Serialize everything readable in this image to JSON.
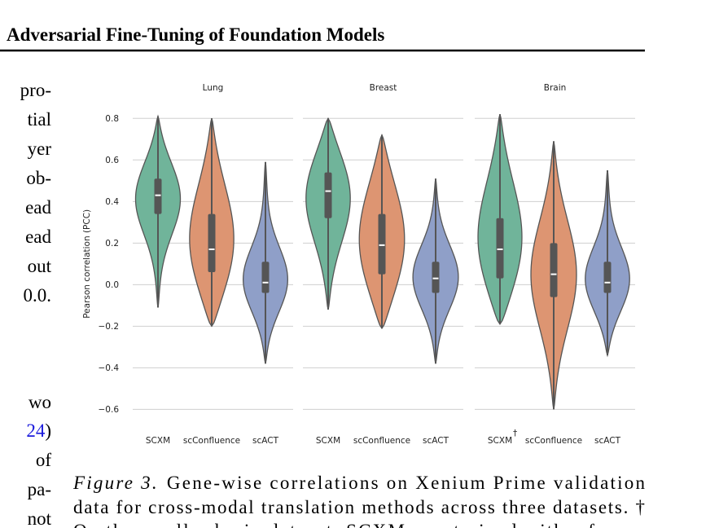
{
  "header": {
    "title": "Adversarial Fine-Tuning of Foundation Models"
  },
  "left_column": {
    "lines": [
      "pro-",
      "tial",
      "yer",
      "ob-",
      "ead",
      "ead",
      "out",
      "0.0.",
      "wo",
      {
        "link": "24",
        "rest": ")"
      },
      "of",
      "pa-",
      "not"
    ]
  },
  "caption": {
    "label": "Figure 3.",
    "lines": [
      "Gene-wise correlations on Xenium Prime validation",
      "data for cross-modal translation methods across three datasets. †",
      "On the smaller brain dataset, SCXM was trained with a frozen"
    ]
  },
  "chart_data": [
    {
      "type": "violin",
      "title": "Lung",
      "ylabel": "Pearson correlation (PCC)",
      "categories": [
        "SCXM",
        "scConfluence",
        "scACT"
      ],
      "colors": [
        "#70b49a",
        "#dd9572",
        "#8f9fc8"
      ],
      "min": [
        -0.11,
        -0.2,
        -0.38
      ],
      "q1": [
        0.34,
        0.06,
        -0.04
      ],
      "median": [
        0.43,
        0.17,
        0.01
      ],
      "q3": [
        0.51,
        0.34,
        0.11
      ],
      "max": [
        0.81,
        0.8,
        0.59
      ],
      "ylim": [
        -0.63,
        0.86
      ],
      "yticks": [
        {
          "value": -0.6,
          "label": "−0.6"
        },
        {
          "value": -0.4,
          "label": "−0.4"
        },
        {
          "value": -0.2,
          "label": "−0.2"
        },
        {
          "value": 0,
          "label": "0.0"
        },
        0.2,
        0.4,
        0.6,
        0.8
      ],
      "grid": true
    },
    {
      "type": "violin",
      "title": "Breast",
      "categories": [
        "SCXM",
        "scConfluence",
        "scACT"
      ],
      "colors": [
        "#70b49a",
        "#dd9572",
        "#8f9fc8"
      ],
      "min": [
        -0.12,
        -0.21,
        -0.38
      ],
      "q1": [
        0.32,
        0.05,
        -0.04
      ],
      "median": [
        0.45,
        0.19,
        0.03
      ],
      "q3": [
        0.54,
        0.34,
        0.11
      ],
      "max": [
        0.8,
        0.72,
        0.51
      ],
      "ylim": [
        -0.63,
        0.86
      ],
      "yticks": [
        -0.6,
        -0.4,
        -0.2,
        0,
        0.2,
        0.4,
        0.6,
        0.8
      ],
      "grid": true
    },
    {
      "type": "violin",
      "title": "Brain",
      "annotation": "†",
      "categories": [
        "SCXM",
        "scConfluence",
        "scACT"
      ],
      "colors": [
        "#70b49a",
        "#dd9572",
        "#8f9fc8"
      ],
      "min": [
        -0.19,
        -0.6,
        -0.34
      ],
      "q1": [
        0.03,
        -0.06,
        -0.04
      ],
      "median": [
        0.17,
        0.05,
        0.01
      ],
      "q3": [
        0.32,
        0.2,
        0.11
      ],
      "max": [
        0.82,
        0.69,
        0.55
      ],
      "ylim": [
        -0.63,
        0.86
      ],
      "yticks": [
        -0.6,
        -0.4,
        -0.2,
        0,
        0.2,
        0.4,
        0.6,
        0.8
      ],
      "grid": true
    }
  ]
}
